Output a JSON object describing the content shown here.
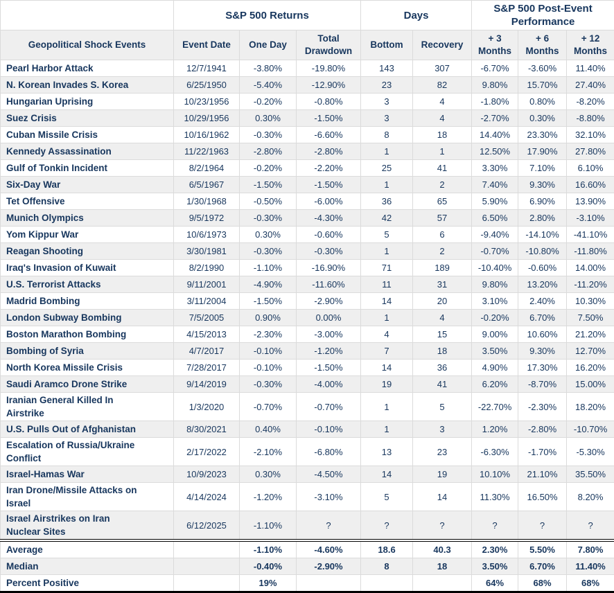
{
  "chart_data": {
    "type": "table",
    "group_headers": [
      {
        "label": "",
        "span": 1
      },
      {
        "label": "S&P 500 Returns",
        "span": 3
      },
      {
        "label": "Days",
        "span": 2
      },
      {
        "label": "S&P 500 Post-Event Performance",
        "span": 3
      }
    ],
    "columns": [
      "Geopolitical Shock Events",
      "Event Date",
      "One Day",
      "Total Drawdown",
      "Bottom",
      "Recovery",
      "+ 3 Months",
      "+ 6 Months",
      "+ 12 Months"
    ],
    "rows": [
      [
        "Pearl Harbor Attack",
        "12/7/1941",
        "-3.80%",
        "-19.80%",
        "143",
        "307",
        "-6.70%",
        "-3.60%",
        "11.40%"
      ],
      [
        "N. Korean Invades S. Korea",
        "6/25/1950",
        "-5.40%",
        "-12.90%",
        "23",
        "82",
        "9.80%",
        "15.70%",
        "27.40%"
      ],
      [
        "Hungarian Uprising",
        "10/23/1956",
        "-0.20%",
        "-0.80%",
        "3",
        "4",
        "-1.80%",
        "0.80%",
        "-8.20%"
      ],
      [
        "Suez Crisis",
        "10/29/1956",
        "0.30%",
        "-1.50%",
        "3",
        "4",
        "-2.70%",
        "0.30%",
        "-8.80%"
      ],
      [
        "Cuban Missile Crisis",
        "10/16/1962",
        "-0.30%",
        "-6.60%",
        "8",
        "18",
        "14.40%",
        "23.30%",
        "32.10%"
      ],
      [
        "Kennedy Assassination",
        "11/22/1963",
        "-2.80%",
        "-2.80%",
        "1",
        "1",
        "12.50%",
        "17.90%",
        "27.80%"
      ],
      [
        "Gulf of Tonkin Incident",
        "8/2/1964",
        "-0.20%",
        "-2.20%",
        "25",
        "41",
        "3.30%",
        "7.10%",
        "6.10%"
      ],
      [
        "Six-Day War",
        "6/5/1967",
        "-1.50%",
        "-1.50%",
        "1",
        "2",
        "7.40%",
        "9.30%",
        "16.60%"
      ],
      [
        "Tet Offensive",
        "1/30/1968",
        "-0.50%",
        "-6.00%",
        "36",
        "65",
        "5.90%",
        "6.90%",
        "13.90%"
      ],
      [
        "Munich Olympics",
        "9/5/1972",
        "-0.30%",
        "-4.30%",
        "42",
        "57",
        "6.50%",
        "2.80%",
        "-3.10%"
      ],
      [
        "Yom Kippur War",
        "10/6/1973",
        "0.30%",
        "-0.60%",
        "5",
        "6",
        "-9.40%",
        "-14.10%",
        "-41.10%"
      ],
      [
        "Reagan Shooting",
        "3/30/1981",
        "-0.30%",
        "-0.30%",
        "1",
        "2",
        "-0.70%",
        "-10.80%",
        "-11.80%"
      ],
      [
        "Iraq's Invasion of Kuwait",
        "8/2/1990",
        "-1.10%",
        "-16.90%",
        "71",
        "189",
        "-10.40%",
        "-0.60%",
        "14.00%"
      ],
      [
        "U.S. Terrorist Attacks",
        "9/11/2001",
        "-4.90%",
        "-11.60%",
        "11",
        "31",
        "9.80%",
        "13.20%",
        "-11.20%"
      ],
      [
        "Madrid Bombing",
        "3/11/2004",
        "-1.50%",
        "-2.90%",
        "14",
        "20",
        "3.10%",
        "2.40%",
        "10.30%"
      ],
      [
        "London Subway Bombing",
        "7/5/2005",
        "0.90%",
        "0.00%",
        "1",
        "4",
        "-0.20%",
        "6.70%",
        "7.50%"
      ],
      [
        "Boston Marathon Bombing",
        "4/15/2013",
        "-2.30%",
        "-3.00%",
        "4",
        "15",
        "9.00%",
        "10.60%",
        "21.20%"
      ],
      [
        "Bombing of Syria",
        "4/7/2017",
        "-0.10%",
        "-1.20%",
        "7",
        "18",
        "3.50%",
        "9.30%",
        "12.70%"
      ],
      [
        "North Korea Missile Crisis",
        "7/28/2017",
        "-0.10%",
        "-1.50%",
        "14",
        "36",
        "4.90%",
        "17.30%",
        "16.20%"
      ],
      [
        "Saudi Aramco Drone Strike",
        "9/14/2019",
        "-0.30%",
        "-4.00%",
        "19",
        "41",
        "6.20%",
        "-8.70%",
        "15.00%"
      ],
      [
        "Iranian General Killed In\nAirstrike",
        "1/3/2020",
        "-0.70%",
        "-0.70%",
        "1",
        "5",
        "-22.70%",
        "-2.30%",
        "18.20%"
      ],
      [
        "U.S. Pulls Out of Afghanistan",
        "8/30/2021",
        "0.40%",
        "-0.10%",
        "1",
        "3",
        "1.20%",
        "-2.80%",
        "-10.70%"
      ],
      [
        "Escalation of Russia/Ukraine\nConflict",
        "2/17/2022",
        "-2.10%",
        "-6.80%",
        "13",
        "23",
        "-6.30%",
        "-1.70%",
        "-5.30%"
      ],
      [
        "Israel-Hamas War",
        "10/9/2023",
        "0.30%",
        "-4.50%",
        "14",
        "19",
        "10.10%",
        "21.10%",
        "35.50%"
      ],
      [
        "Iran Drone/Missile Attacks on\nIsrael",
        "4/14/2024",
        "-1.20%",
        "-3.10%",
        "5",
        "14",
        "11.30%",
        "16.50%",
        "8.20%"
      ],
      [
        "Israel Airstrikes on Iran\nNuclear Sites",
        "6/12/2025",
        "-1.10%",
        "?",
        "?",
        "?",
        "?",
        "?",
        "?"
      ]
    ],
    "summary_rows": [
      [
        "Average",
        "",
        "-1.10%",
        "-4.60%",
        "18.6",
        "40.3",
        "2.30%",
        "5.50%",
        "7.80%"
      ],
      [
        "Median",
        "",
        "-0.40%",
        "-2.90%",
        "8",
        "18",
        "3.50%",
        "6.70%",
        "11.40%"
      ],
      [
        "Percent Positive",
        "",
        "19%",
        "",
        "",
        "",
        "64%",
        "68%",
        "68%"
      ]
    ],
    "layout": {
      "striped_rows": "even",
      "grid": true,
      "legend_position": "none"
    }
  },
  "colors": {
    "text_navy": "#17365D",
    "stripe_gray": "#EFEFEF",
    "grid_gray": "#DBDBDB",
    "separator_black": "#000000"
  }
}
